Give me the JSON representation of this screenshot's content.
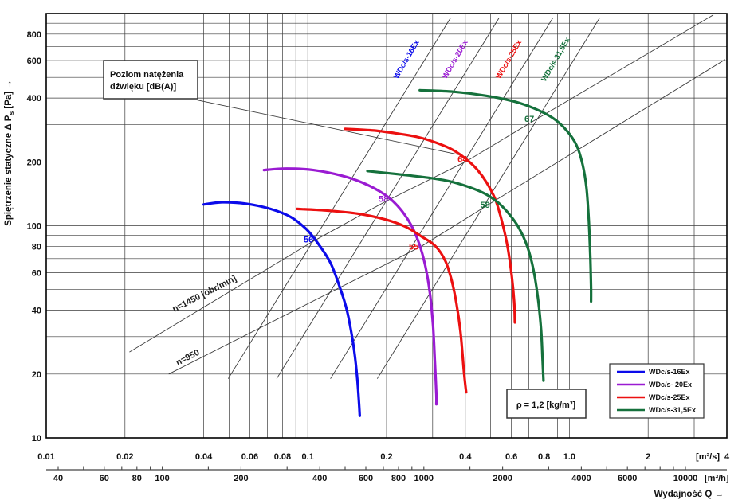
{
  "colors": {
    "blue": "#0b0bea",
    "purple": "#9a1bd2",
    "red": "#ec1010",
    "green": "#15713c",
    "grid": "#3c3c3c",
    "thin_line": "#3c3c3c",
    "border": "#000000"
  },
  "labels": {
    "y_title_pre": "Spiętrzenie statyczne Δ P",
    "y_title_sub": "s",
    "y_title_post": " [Pa] →",
    "x_title": "Wydajność Q →",
    "unit_s": "[m³/s]",
    "unit_h": "[m³/h]"
  },
  "boxes": {
    "noise": {
      "line1": "Poziom natężenia",
      "line2": "dźwięku [dB(A)]"
    },
    "rho": {
      "text": "ρ = 1,2 [kg/m³]"
    }
  },
  "legend": {
    "items": [
      {
        "label": "WDc/s-16Ex",
        "color_key": "blue"
      },
      {
        "label": "WDc/s- 20Ex",
        "color_key": "purple"
      },
      {
        "label": "WDc/s-25Ex",
        "color_key": "red"
      },
      {
        "label": "WDc/s-31,5Ex",
        "color_key": "green"
      }
    ]
  },
  "chart_data": {
    "type": "line",
    "log_x": true,
    "log_y": true,
    "xlim_m3s": [
      0.01,
      4
    ],
    "ylim_pa": [
      10,
      1000
    ],
    "grid": "full-log-minor",
    "axes": {
      "y_ticks": [
        {
          "p": 800,
          "t": "800"
        },
        {
          "p": 600,
          "t": "600"
        },
        {
          "p": 400,
          "t": "400"
        },
        {
          "p": 200,
          "t": "200"
        },
        {
          "p": 100,
          "t": "100"
        },
        {
          "p": 80,
          "t": "80"
        },
        {
          "p": 60,
          "t": "60"
        },
        {
          "p": 40,
          "t": "40"
        },
        {
          "p": 20,
          "t": "20"
        },
        {
          "p": 10,
          "t": "10"
        }
      ],
      "x_ticks_m3s": [
        {
          "q": 0.01,
          "t": "0.01"
        },
        {
          "q": 0.02,
          "t": "0.02"
        },
        {
          "q": 0.04,
          "t": "0.04"
        },
        {
          "q": 0.06,
          "t": "0.06"
        },
        {
          "q": 0.08,
          "t": "0.08"
        },
        {
          "q": 0.1,
          "t": "0.1"
        },
        {
          "q": 0.2,
          "t": "0.2"
        },
        {
          "q": 0.4,
          "t": "0.4"
        },
        {
          "q": 0.6,
          "t": "0.6"
        },
        {
          "q": 0.8,
          "t": "0.8"
        },
        {
          "q": 1.0,
          "t": "1.0"
        },
        {
          "q": 2,
          "t": "2"
        },
        {
          "q": 4,
          "t": "4"
        }
      ],
      "x_labels_m3h": [
        {
          "v": 40,
          "t": "40"
        },
        {
          "v": 60,
          "t": "60"
        },
        {
          "v": 80,
          "t": "80"
        },
        {
          "v": 100,
          "t": "100"
        },
        {
          "v": 200,
          "t": "200"
        },
        {
          "v": 400,
          "t": "400"
        },
        {
          "v": 600,
          "t": "600"
        },
        {
          "v": 800,
          "t": "800"
        },
        {
          "v": 1000,
          "t": "1000"
        },
        {
          "v": 2000,
          "t": "2000"
        },
        {
          "v": 4000,
          "t": "4000"
        },
        {
          "v": 6000,
          "t": "6000"
        },
        {
          "v": 10000,
          "t": "10000"
        }
      ],
      "x_minor_ticks_m3h": [
        40,
        50,
        60,
        70,
        80,
        90,
        100,
        150,
        200,
        300,
        400,
        500,
        600,
        700,
        800,
        900,
        1000,
        1500,
        2000,
        3000,
        4000,
        5000,
        6000,
        7000,
        8000,
        9000,
        10000
      ]
    },
    "series": [
      {
        "name": "WDc/s-16Ex",
        "rpm": "1450",
        "color_key": "blue",
        "points": [
          [
            0.04,
            126
          ],
          [
            0.047,
            129
          ],
          [
            0.058,
            127
          ],
          [
            0.072,
            120
          ],
          [
            0.086,
            110
          ],
          [
            0.099,
            96
          ],
          [
            0.109,
            83
          ],
          [
            0.122,
            67
          ],
          [
            0.132,
            52
          ],
          [
            0.141,
            40
          ],
          [
            0.149,
            28
          ],
          [
            0.154,
            20
          ],
          [
            0.157,
            14.5
          ],
          [
            0.158,
            12.7
          ]
        ]
      },
      {
        "name": "WDc/s-20Ex",
        "rpm": "1450",
        "color_key": "purple",
        "points": [
          [
            0.068,
            183
          ],
          [
            0.083,
            186
          ],
          [
            0.105,
            183
          ],
          [
            0.135,
            172
          ],
          [
            0.161,
            160
          ],
          [
            0.187,
            146
          ],
          [
            0.208,
            133
          ],
          [
            0.228,
            118
          ],
          [
            0.248,
            101
          ],
          [
            0.266,
            83
          ],
          [
            0.281,
            65
          ],
          [
            0.293,
            48
          ],
          [
            0.301,
            34
          ],
          [
            0.306,
            23
          ],
          [
            0.31,
            16
          ],
          [
            0.31,
            14.4
          ]
        ]
      },
      {
        "name": "WDc/s-25Ex",
        "rpm": "1450",
        "color_key": "red",
        "points": [
          [
            0.139,
            286
          ],
          [
            0.179,
            281
          ],
          [
            0.22,
            272
          ],
          [
            0.266,
            261
          ],
          [
            0.313,
            245
          ],
          [
            0.36,
            227
          ],
          [
            0.403,
            206
          ],
          [
            0.444,
            184
          ],
          [
            0.482,
            160
          ],
          [
            0.521,
            133
          ],
          [
            0.553,
            104
          ],
          [
            0.581,
            79
          ],
          [
            0.602,
            58
          ],
          [
            0.615,
            44
          ],
          [
            0.619,
            35
          ]
        ]
      },
      {
        "name": "WDc/s-25Ex",
        "rpm": "950",
        "color_key": "red",
        "points": [
          [
            0.091,
            120
          ],
          [
            0.117,
            118
          ],
          [
            0.155,
            114
          ],
          [
            0.198,
            107
          ],
          [
            0.236,
            99
          ],
          [
            0.272,
            89
          ],
          [
            0.308,
            80
          ],
          [
            0.336,
            68
          ],
          [
            0.355,
            55
          ],
          [
            0.37,
            43
          ],
          [
            0.383,
            32
          ],
          [
            0.391,
            24
          ],
          [
            0.396,
            20
          ],
          [
            0.403,
            16.4
          ]
        ]
      },
      {
        "name": "WDc/s-31,5Ex",
        "rpm": "1450",
        "color_key": "green",
        "points": [
          [
            0.268,
            435
          ],
          [
            0.36,
            428
          ],
          [
            0.478,
            410
          ],
          [
            0.611,
            386
          ],
          [
            0.734,
            357
          ],
          [
            0.864,
            322
          ],
          [
            0.971,
            283
          ],
          [
            1.064,
            240
          ],
          [
            1.123,
            195
          ],
          [
            1.162,
            151
          ],
          [
            1.186,
            107
          ],
          [
            1.202,
            72
          ],
          [
            1.21,
            51
          ],
          [
            1.21,
            44
          ]
        ]
      },
      {
        "name": "WDc/s-31,5Ex",
        "rpm": "950",
        "color_key": "green",
        "points": [
          [
            0.169,
            181
          ],
          [
            0.22,
            175
          ],
          [
            0.282,
            169
          ],
          [
            0.348,
            162
          ],
          [
            0.414,
            152
          ],
          [
            0.478,
            141
          ],
          [
            0.536,
            128
          ],
          [
            0.59,
            113
          ],
          [
            0.64,
            98
          ],
          [
            0.69,
            80
          ],
          [
            0.729,
            62
          ],
          [
            0.759,
            45
          ],
          [
            0.78,
            32
          ],
          [
            0.79,
            23
          ],
          [
            0.796,
            18.6
          ]
        ]
      }
    ],
    "affinity_lines": [
      {
        "label": "WDc/s-16Ex",
        "color_key": "blue",
        "k": 7722,
        "p_range": [
          19,
          950
        ],
        "label_q": 0.262,
        "label_p": 600
      },
      {
        "label": "WDc/s-20Ex",
        "color_key": "purple",
        "k": 3290,
        "p_range": [
          19,
          950
        ],
        "label_q": 0.402,
        "label_p": 600
      },
      {
        "label": "WDc/s-25Ex",
        "color_key": "red",
        "k": 1275,
        "p_range": [
          19,
          950
        ],
        "label_q": 0.645,
        "label_p": 600
      },
      {
        "label": "WDc/s-31,5Ex",
        "color_key": "green",
        "k": 560,
        "p_range": [
          19,
          950
        ],
        "label_q": 0.975,
        "label_p": 600
      }
    ],
    "speed_lines": [
      {
        "label": "n=1450 [obr/min]",
        "points": [
          [
            0.0208,
            25.4
          ],
          [
            0.104,
            84
          ],
          [
            0.198,
            130
          ],
          [
            0.403,
            201
          ],
          [
            0.723,
            310
          ],
          [
            3.55,
            985
          ]
        ],
        "label_anchor": [
          0.0406,
          46.5
        ],
        "label_angle": -27
      },
      {
        "label": "n=950",
        "points": [
          [
            0.0294,
            20
          ],
          [
            0.272,
            80
          ],
          [
            0.486,
            125
          ],
          [
            3.94,
            607
          ]
        ],
        "label_anchor": [
          0.035,
          23.3
        ],
        "label_angle": -27
      }
    ],
    "leader_line": {
      "from": [
        0.0378,
        391
      ],
      "to": [
        0.38,
        216
      ]
    },
    "noise_labels": [
      {
        "text": "56",
        "color_key": "blue",
        "q": 0.108,
        "p": 86.5
      },
      {
        "text": "58",
        "color_key": "purple",
        "q": 0.209,
        "p": 134
      },
      {
        "text": "55",
        "color_key": "red",
        "q": 0.273,
        "p": 80
      },
      {
        "text": "64",
        "color_key": "red",
        "q": 0.419,
        "p": 207
      },
      {
        "text": "58",
        "color_key": "green",
        "q": 0.511,
        "p": 126
      },
      {
        "text": "67",
        "color_key": "green",
        "q": 0.755,
        "p": 320
      }
    ]
  }
}
